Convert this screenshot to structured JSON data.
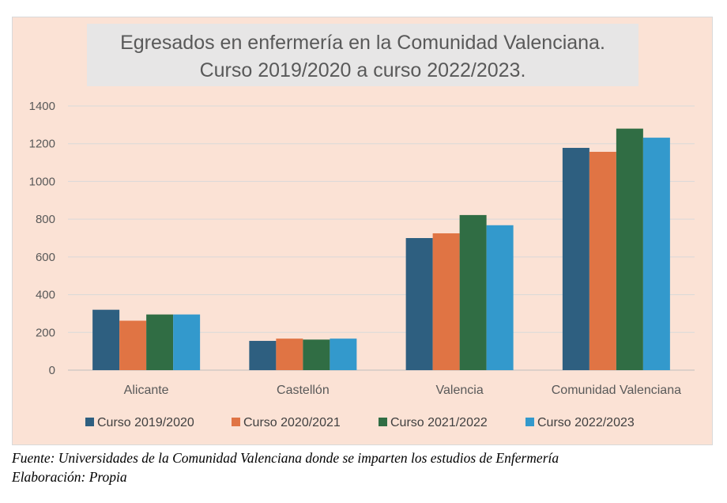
{
  "chart_data": {
    "type": "bar",
    "title_lines": [
      "Egresados en enfermería en la Comunidad Valenciana.",
      "Curso 2019/2020  a curso 2022/2023."
    ],
    "categories": [
      "Alicante",
      "Castellón",
      "Valencia",
      "Comunidad Valenciana"
    ],
    "series": [
      {
        "name": "Curso 2019/2020",
        "color": "#2e5f80",
        "values": [
          320,
          155,
          700,
          1178
        ]
      },
      {
        "name": "Curso 2020/2021",
        "color": "#e07444",
        "values": [
          262,
          167,
          725,
          1157
        ]
      },
      {
        "name": "Curso 2021/2022",
        "color": "#306d44",
        "values": [
          295,
          162,
          822,
          1280
        ]
      },
      {
        "name": "Curso 2022/2023",
        "color": "#3399cc",
        "values": [
          295,
          167,
          768,
          1232
        ]
      }
    ],
    "yticks": [
      0,
      200,
      400,
      600,
      800,
      1000,
      1200,
      1400
    ],
    "ylim": [
      0,
      1400
    ],
    "grid": true,
    "legend_position": "bottom",
    "xlabel": "",
    "ylabel": ""
  },
  "footnotes": {
    "source": "Fuente: Universidades de la Comunidad Valenciana donde se imparten los estudios de Enfermería",
    "author": "Elaboración: Propia"
  },
  "colors": {
    "plot_background": "#fbe2d5",
    "title_background": "#e7e6e6",
    "gridline": "#d9d9d9",
    "text": "#595959"
  }
}
